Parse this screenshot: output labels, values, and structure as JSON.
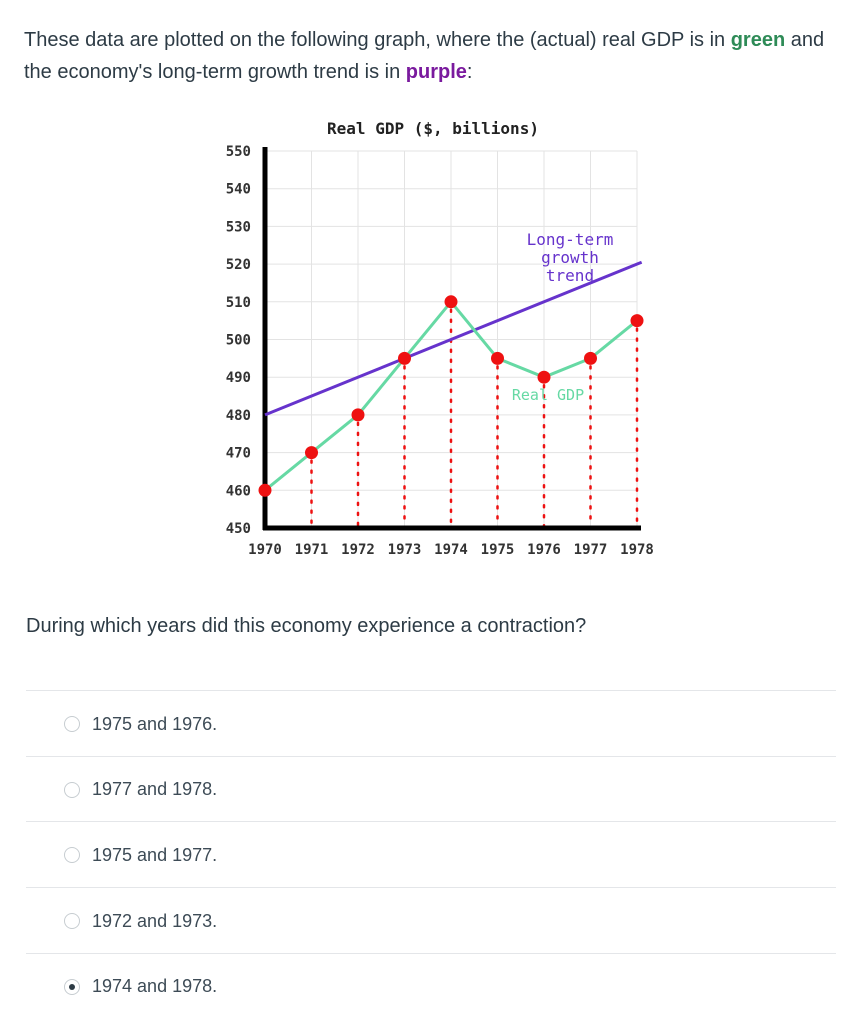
{
  "intro": {
    "part1": "These data are plotted on the following graph, where the (actual) real GDP is in ",
    "green_word": "green",
    "part2": " and the economy's long-term growth trend is in ",
    "purple_word": "purple",
    "part3": ":"
  },
  "colors": {
    "actual": "#66d9a4",
    "trend": "#6633cc",
    "point": "#ee1111",
    "green_text": "#2e8b57",
    "purple_text": "#7a1a9e"
  },
  "chart_data": {
    "type": "line",
    "title": "Real GDP ($, billions)",
    "x": [
      "1970",
      "1971",
      "1972",
      "1973",
      "1974",
      "1975",
      "1976",
      "1977",
      "1978"
    ],
    "ylim": [
      450,
      550
    ],
    "yticks": [
      450,
      460,
      470,
      480,
      490,
      500,
      510,
      520,
      530,
      540,
      550
    ],
    "grid": true,
    "series": [
      {
        "name": "Real GDP",
        "values": [
          460,
          470,
          480,
          495,
          510,
          495,
          490,
          495,
          505
        ]
      },
      {
        "name": "Long-term growth trend",
        "values": [
          480,
          485,
          490,
          495,
          500,
          505,
          510,
          515,
          520
        ]
      }
    ],
    "annotations": {
      "trend_label_lines": [
        "Long-term",
        "growth",
        "trend"
      ],
      "actual_label": "Real GDP"
    }
  },
  "question": "During which years did this economy experience a contraction?",
  "choices": [
    {
      "label": "1975 and 1976.",
      "selected": false
    },
    {
      "label": "1977 and 1978.",
      "selected": false
    },
    {
      "label": "1975 and 1977.",
      "selected": false
    },
    {
      "label": "1972 and 1973.",
      "selected": false
    },
    {
      "label": "1974 and 1978.",
      "selected": true
    }
  ]
}
